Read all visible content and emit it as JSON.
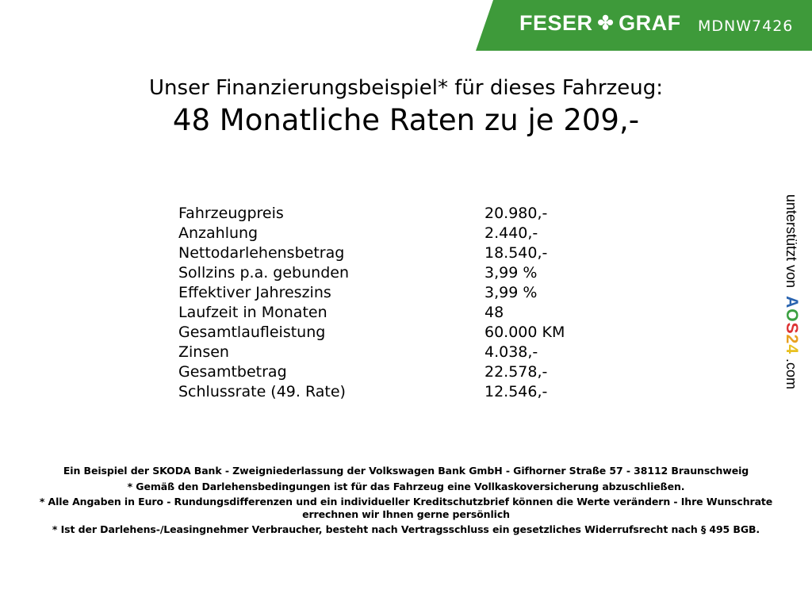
{
  "header": {
    "brand_left": "FESER",
    "brand_right": "GRAF",
    "brand_icon": "clover-icon",
    "vehicle_code": "MDNW7426",
    "banner_color": "#3e9a3a"
  },
  "title": {
    "line1": "Unser Finanzierungsbeispiel* für dieses Fahrzeug:",
    "line2": "48 Monatliche Raten zu je 209,-"
  },
  "rows": [
    {
      "label": "Fahrzeugpreis",
      "value": "20.980,-"
    },
    {
      "label": "Anzahlung",
      "value": "2.440,-"
    },
    {
      "label": "Nettodarlehensbetrag",
      "value": "18.540,-"
    },
    {
      "label": "Sollzins p.a. gebunden",
      "value": "3,99 %"
    },
    {
      "label": "Effektiver Jahreszins",
      "value": "3,99 %"
    },
    {
      "label": "Laufzeit in Monaten",
      "value": "48"
    },
    {
      "label": "Gesamtlaufleistung",
      "value": "60.000 KM"
    },
    {
      "label": "Zinsen",
      "value": "4.038,-"
    },
    {
      "label": "Gesamtbetrag",
      "value": "22.578,-"
    },
    {
      "label": "Schlussrate (49. Rate)",
      "value": "12.546,-"
    }
  ],
  "side": {
    "prefix": "unterstützt von",
    "logo_a": "A",
    "logo_o": "O",
    "logo_s": "S",
    "logo_2": "2",
    "logo_4": "4",
    "suffix": ".com"
  },
  "footer": [
    "Ein Beispiel der SKODA Bank - Zweigniederlassung der Volkswagen Bank GmbH - Gifhorner Straße 57 - 38112 Braunschweig",
    "* Gemäß den Darlehensbedingungen ist für das Fahrzeug eine Vollkaskoversicherung abzuschließen.",
    "* Alle Angaben in Euro - Rundungsdifferenzen und ein individueller Kreditschutzbrief können die Werte verändern - Ihre Wunschrate errechnen wir Ihnen gerne persönlich",
    "* Ist der Darlehens-/Leasingnehmer Verbraucher, besteht nach Vertragsschluss ein gesetzliches Widerrufsrecht nach § 495 BGB."
  ]
}
